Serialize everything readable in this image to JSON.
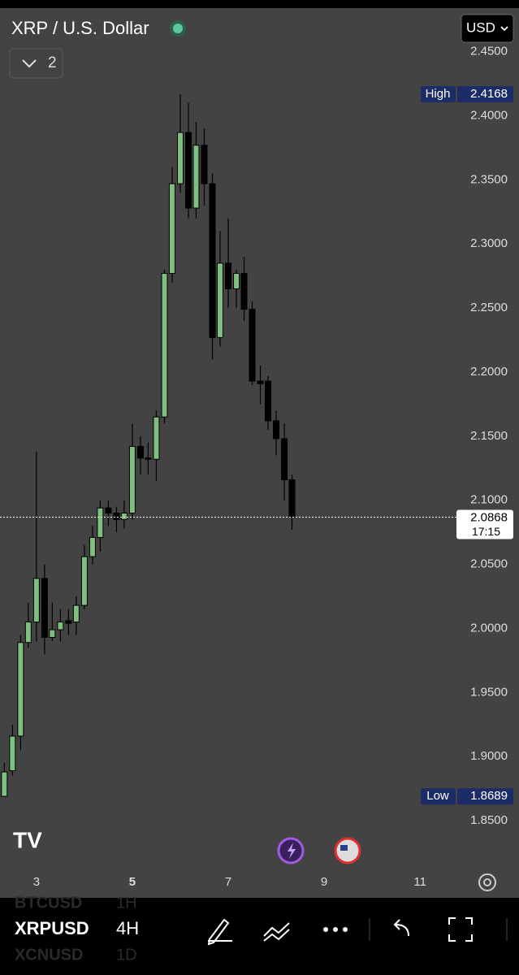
{
  "header": {
    "title": "XRP / U.S. Dollar",
    "currency": "USD",
    "indicator_count": "2"
  },
  "chart_data": {
    "type": "candlestick",
    "x": [
      2.33,
      2.5,
      2.67,
      2.83,
      3,
      3.17,
      3.33,
      3.5,
      3.67,
      3.83,
      4,
      4.17,
      4.33,
      4.5,
      4.67,
      4.83,
      5,
      5.17,
      5.33,
      5.5,
      5.67,
      5.83,
      6,
      6.17,
      6.33,
      6.5,
      6.67,
      6.83,
      7,
      7.17,
      7.33,
      7.5,
      7.67,
      7.83,
      8,
      8.17,
      8.33
    ],
    "open": [
      1.869,
      1.889,
      1.916,
      1.989,
      2.005,
      2.039,
      1.993,
      1.999,
      2.006,
      2.005,
      2.018,
      2.056,
      2.071,
      2.094,
      2.09,
      2.085,
      2.09,
      2.142,
      2.133,
      2.132,
      2.165,
      2.277,
      2.347,
      2.387,
      2.328,
      2.377,
      2.347,
      2.227,
      2.285,
      2.265,
      2.277,
      2.249,
      2.193,
      2.193,
      2.162,
      2.148,
      2.116
    ],
    "high": [
      1.895,
      1.925,
      1.995,
      2.02,
      2.138,
      2.05,
      2.02,
      2.015,
      2.015,
      2.025,
      2.065,
      2.08,
      2.1,
      2.1,
      2.095,
      2.1,
      2.16,
      2.15,
      2.145,
      2.17,
      2.28,
      2.36,
      2.4168,
      2.41,
      2.395,
      2.39,
      2.355,
      2.31,
      2.32,
      2.28,
      2.29,
      2.255,
      2.205,
      2.197,
      2.17,
      2.16,
      2.12
    ],
    "low": [
      1.8689,
      1.885,
      1.905,
      1.985,
      1.99,
      1.98,
      1.99,
      1.99,
      1.995,
      1.995,
      2.015,
      2.05,
      2.06,
      2.08,
      2.075,
      2.078,
      2.085,
      2.12,
      2.12,
      2.115,
      2.16,
      2.27,
      2.34,
      2.32,
      2.32,
      2.33,
      2.21,
      2.22,
      2.25,
      2.25,
      2.24,
      2.19,
      2.175,
      2.155,
      2.135,
      2.1,
      2.077
    ],
    "close": [
      1.888,
      1.916,
      1.989,
      2.005,
      2.039,
      1.993,
      1.999,
      2.005,
      2.004,
      2.018,
      2.056,
      2.071,
      2.094,
      2.09,
      2.085,
      2.09,
      2.142,
      2.133,
      2.132,
      2.165,
      2.277,
      2.347,
      2.387,
      2.328,
      2.377,
      2.347,
      2.227,
      2.285,
      2.265,
      2.277,
      2.249,
      2.193,
      2.191,
      2.162,
      2.148,
      2.116,
      2.0868
    ],
    "up_color": "#7fbf7f",
    "down_color": "#000000",
    "xlim": [
      2.24,
      11.76
    ],
    "xticks": [
      3,
      5,
      7,
      9,
      11
    ],
    "ylim": [
      1.812,
      2.484
    ],
    "yticks": [
      {
        "value": 1.85,
        "label": "1.8500"
      },
      {
        "value": 1.9,
        "label": "1.9000"
      },
      {
        "value": 1.95,
        "label": "1.9500"
      },
      {
        "value": 2.0,
        "label": "2.0000"
      },
      {
        "value": 2.05,
        "label": "2.0500"
      },
      {
        "value": 2.1,
        "label": "2.1000"
      },
      {
        "value": 2.15,
        "label": "2.1500"
      },
      {
        "value": 2.2,
        "label": "2.2000"
      },
      {
        "value": 2.25,
        "label": "2.2500"
      },
      {
        "value": 2.3,
        "label": "2.3000"
      },
      {
        "value": 2.35,
        "label": "2.3500"
      },
      {
        "value": 2.4,
        "label": "2.4000"
      },
      {
        "value": 2.45,
        "label": "2.4500"
      }
    ],
    "high_marker": {
      "label": "High",
      "value": 2.4168
    },
    "low_marker": {
      "label": "Low",
      "value": 1.8689
    },
    "last_price": {
      "value": 2.0868,
      "countdown": "17:15"
    }
  },
  "toolbar": {
    "symbol": "XRPUSD",
    "interval": "4H",
    "other_symbols": [
      "BTCUSD",
      "XCNUSD"
    ],
    "other_intervals": [
      "1H",
      "1D"
    ]
  }
}
